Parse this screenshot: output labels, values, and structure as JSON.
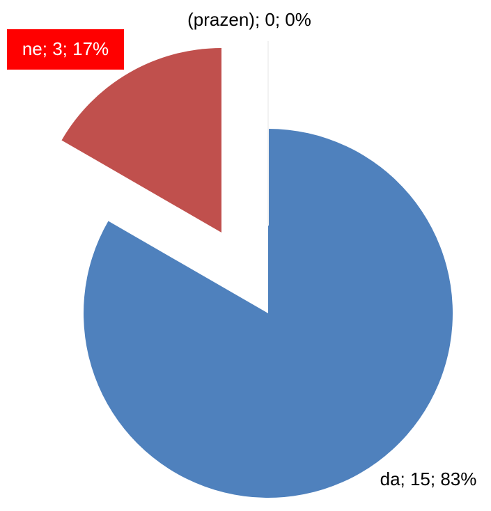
{
  "chart_data": {
    "type": "pie",
    "categories": [
      "da",
      "ne",
      "(prazen)"
    ],
    "values": [
      15,
      3,
      0
    ],
    "value_labels": [
      "da; 15; 83%",
      "ne; 3; 17%",
      "(prazen); 0; 0%"
    ],
    "colors": [
      "#4f81bd",
      "#c0504d",
      "#9bbb59"
    ]
  }
}
